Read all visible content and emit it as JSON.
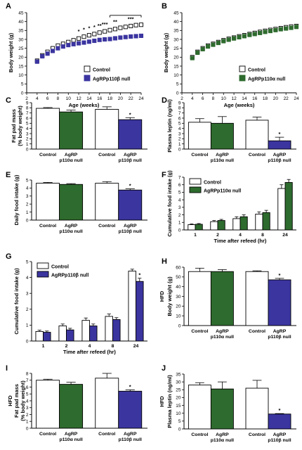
{
  "colors": {
    "control": "#ffffff",
    "agrp_p110a": "#2e6b2e",
    "agrp_p110b": "#3b35a0",
    "outline": "#000000"
  },
  "chart_data": [
    {
      "panel": "A",
      "type": "line",
      "xlabel": "Age (weeks)",
      "ylabel": "Body weight (g)",
      "xlim": [
        2,
        24
      ],
      "ylim": [
        0,
        45
      ],
      "xticks": [
        2,
        4,
        6,
        8,
        10,
        12,
        14,
        16,
        18,
        20,
        22,
        24
      ],
      "yticks": [
        0,
        5,
        10,
        15,
        20,
        25,
        30,
        35,
        40,
        45
      ],
      "x": [
        4,
        5,
        6,
        7,
        8,
        9,
        10,
        11,
        12,
        13,
        14,
        15,
        16,
        17,
        18,
        19,
        20,
        21,
        22,
        23,
        24
      ],
      "series": [
        {
          "name": "Control",
          "style": "open-square",
          "values": [
            18,
            21,
            23,
            25,
            26.5,
            27.5,
            28.5,
            29.5,
            30.5,
            31.5,
            32.3,
            33,
            33.8,
            34.5,
            35.2,
            35.8,
            36.5,
            37,
            37.5,
            38,
            38.2
          ]
        },
        {
          "name": "AgRPp110β null",
          "style": "filled-blue",
          "values": [
            17.5,
            20.5,
            22,
            23.5,
            25,
            26,
            26.8,
            27.3,
            27.8,
            28.2,
            28.7,
            29.2,
            29.7,
            30,
            30.2,
            30.6,
            31,
            31.3,
            31.6,
            31.8,
            32
          ]
        }
      ],
      "annotations": [
        "*",
        "*",
        "*",
        "*",
        "**",
        "***",
        "**",
        "***"
      ]
    },
    {
      "panel": "B",
      "type": "line",
      "xlabel": "Age (weeks)",
      "ylabel": "Body weight (g)",
      "xlim": [
        2,
        24
      ],
      "ylim": [
        0,
        45
      ],
      "xticks": [
        2,
        4,
        6,
        8,
        10,
        12,
        14,
        16,
        18,
        20,
        22,
        24
      ],
      "yticks": [
        0,
        5,
        10,
        15,
        20,
        25,
        30,
        35,
        40,
        45
      ],
      "x": [
        4,
        5,
        6,
        7,
        8,
        9,
        10,
        11,
        12,
        13,
        14,
        15,
        16,
        17,
        18,
        19,
        20,
        21,
        22,
        23,
        24
      ],
      "series": [
        {
          "name": "Control",
          "style": "open-square",
          "values": [
            20,
            23,
            25,
            26.5,
            27.5,
            28.5,
            29.5,
            30.3,
            31,
            31.7,
            32.3,
            33,
            33.6,
            34.2,
            34.8,
            35.3,
            35.8,
            36.3,
            36.8,
            37.2,
            37.5
          ]
        },
        {
          "name": "AgRPp110α null",
          "style": "filled-green",
          "values": [
            19.5,
            22.5,
            24.5,
            26,
            27,
            28,
            29,
            29.8,
            30.5,
            31.2,
            31.8,
            32.5,
            33,
            33.6,
            34.2,
            34.7,
            35.2,
            35.7,
            36.1,
            36.5,
            37
          ]
        }
      ]
    },
    {
      "panel": "C",
      "type": "bar",
      "ylabel": "Fat pad mass (% body weight)",
      "ylim": [
        0,
        9
      ],
      "yticks": [
        0,
        1,
        2,
        3,
        4,
        5,
        6,
        7,
        8,
        9
      ],
      "groups": [
        {
          "labels": [
            "Control",
            "AgRP p110α null"
          ],
          "values": [
            7.9,
            7.2
          ],
          "errors": [
            0.15,
            0.35
          ],
          "colors": [
            "control",
            "agrp_p110a"
          ],
          "stars": [
            "",
            ""
          ]
        },
        {
          "labels": [
            "Control",
            "AgRP p110β null"
          ],
          "values": [
            7.7,
            5.7
          ],
          "errors": [
            0.5,
            0.4
          ],
          "colors": [
            "control",
            "agrp_p110b"
          ],
          "stars": [
            "",
            "*"
          ]
        }
      ]
    },
    {
      "panel": "D",
      "type": "bar",
      "ylabel": "Plasma leptin (ng/ml)",
      "ylim": [
        0,
        9
      ],
      "yticks": [
        0,
        1,
        2,
        3,
        4,
        5,
        6,
        7,
        8,
        9
      ],
      "groups": [
        {
          "labels": [
            "Control",
            "AgRP p110α null"
          ],
          "values": [
            5.2,
            5.0
          ],
          "errors": [
            0.7,
            1.3
          ],
          "colors": [
            "control",
            "agrp_p110a"
          ],
          "stars": [
            "",
            ""
          ]
        },
        {
          "labels": [
            "Control",
            "AgRP p110β null"
          ],
          "values": [
            5.6,
            1.6
          ],
          "errors": [
            0.6,
            0.7
          ],
          "colors": [
            "control",
            "agrp_p110b"
          ],
          "stars": [
            "",
            "*"
          ]
        }
      ]
    },
    {
      "panel": "E",
      "type": "bar",
      "ylabel": "Daily food intake (g)",
      "ylim": [
        0,
        5
      ],
      "yticks": [
        0,
        1,
        2,
        3,
        4,
        5
      ],
      "groups": [
        {
          "labels": [
            "Control",
            "AgRP p110α null"
          ],
          "values": [
            4.6,
            4.45
          ],
          "errors": [
            0.1,
            0.1
          ],
          "colors": [
            "control",
            "agrp_p110a"
          ],
          "stars": [
            "",
            ""
          ]
        },
        {
          "labels": [
            "Control",
            "AgRP p110β null"
          ],
          "values": [
            4.6,
            3.75
          ],
          "errors": [
            0.2,
            0.15
          ],
          "colors": [
            "control",
            "agrp_p110b"
          ],
          "stars": [
            "",
            "*"
          ]
        }
      ]
    },
    {
      "panel": "F",
      "type": "bar",
      "xlabel": "Time after refeed (hr)",
      "ylabel": "Cumulative food intake (g)",
      "ylim": [
        0,
        7
      ],
      "yticks": [
        0,
        1,
        2,
        3,
        4,
        5,
        6,
        7
      ],
      "categories": [
        "1",
        "2",
        "4",
        "8",
        "24"
      ],
      "series": [
        {
          "name": "Control",
          "color": "control",
          "values": [
            0.7,
            1.1,
            1.5,
            2.1,
            5.5
          ],
          "errors": [
            0.1,
            0.15,
            0.25,
            0.3,
            0.5
          ]
        },
        {
          "name": "AgRPp110α null",
          "color": "agrp_p110a",
          "values": [
            0.75,
            1.25,
            1.75,
            2.3,
            6.3
          ],
          "errors": [
            0.1,
            0.15,
            0.25,
            0.3,
            0.4
          ]
        }
      ]
    },
    {
      "panel": "G",
      "type": "bar",
      "xlabel": "Time after refeed (hr)",
      "ylabel": "Cumulative food intake (g)",
      "ylim": [
        0,
        5
      ],
      "yticks": [
        0,
        1,
        2,
        3,
        4,
        5
      ],
      "categories": [
        "1",
        "2",
        "4",
        "8",
        "24"
      ],
      "series": [
        {
          "name": "Control",
          "color": "control",
          "values": [
            0.6,
            0.95,
            1.3,
            1.55,
            4.4
          ],
          "errors": [
            0.08,
            0.12,
            0.15,
            0.15,
            0.12
          ]
        },
        {
          "name": "AgRPp110β null",
          "color": "agrp_p110b",
          "values": [
            0.55,
            0.7,
            0.95,
            1.35,
            3.75
          ],
          "errors": [
            0.08,
            0.1,
            0.12,
            0.12,
            0.2
          ]
        }
      ],
      "stars": [
        "",
        "",
        "",
        "",
        "*"
      ]
    },
    {
      "panel": "H",
      "type": "bar",
      "ylabel": "Body weight (g)",
      "ylabel2": "HFD",
      "ylim": [
        0,
        60
      ],
      "yticks": [
        0,
        10,
        20,
        30,
        40,
        50,
        60
      ],
      "groups": [
        {
          "labels": [
            "Control",
            "AgRP p110α null"
          ],
          "values": [
            55.5,
            55.5
          ],
          "errors": [
            3.5,
            2.0
          ],
          "colors": [
            "control",
            "agrp_p110a"
          ],
          "stars": [
            "",
            ""
          ]
        },
        {
          "labels": [
            "Control",
            "AgRP p110β null"
          ],
          "values": [
            55.5,
            47
          ],
          "errors": [
            0.8,
            1.5
          ],
          "colors": [
            "control",
            "agrp_p110b"
          ],
          "stars": [
            "",
            "*"
          ]
        }
      ]
    },
    {
      "panel": "I",
      "type": "bar",
      "ylabel": "Fat pad mass (% body weight)",
      "ylabel2": "HFD",
      "ylim": [
        0,
        8
      ],
      "yticks": [
        0,
        1,
        2,
        3,
        4,
        5,
        6,
        7,
        8
      ],
      "groups": [
        {
          "labels": [
            "Control",
            "AgRP p110α null"
          ],
          "values": [
            7.0,
            6.4
          ],
          "errors": [
            0.15,
            0.3
          ],
          "colors": [
            "control",
            "agrp_p110a"
          ],
          "stars": [
            "",
            ""
          ]
        },
        {
          "labels": [
            "Control",
            "AgRP p110β null"
          ],
          "values": [
            7.3,
            5.4
          ],
          "errors": [
            0.7,
            0.2
          ],
          "colors": [
            "control",
            "agrp_p110b"
          ],
          "stars": [
            "",
            "*"
          ]
        }
      ]
    },
    {
      "panel": "J",
      "type": "bar",
      "ylabel": "Plasma leptin (ng/ml)",
      "ylabel2": "HFD",
      "ylim": [
        0,
        35
      ],
      "yticks": [
        0,
        5,
        10,
        15,
        20,
        25,
        30,
        35
      ],
      "groups": [
        {
          "labels": [
            "Control",
            "AgRP p110α null"
          ],
          "values": [
            28,
            25.5
          ],
          "errors": [
            1.5,
            4.5
          ],
          "colors": [
            "control",
            "agrp_p110a"
          ],
          "stars": [
            "",
            ""
          ]
        },
        {
          "labels": [
            "Control",
            "AgRP p110β null"
          ],
          "values": [
            26,
            9.5
          ],
          "errors": [
            5,
            0.3
          ],
          "colors": [
            "control",
            "agrp_p110b"
          ],
          "stars": [
            "",
            "*"
          ]
        }
      ]
    }
  ]
}
